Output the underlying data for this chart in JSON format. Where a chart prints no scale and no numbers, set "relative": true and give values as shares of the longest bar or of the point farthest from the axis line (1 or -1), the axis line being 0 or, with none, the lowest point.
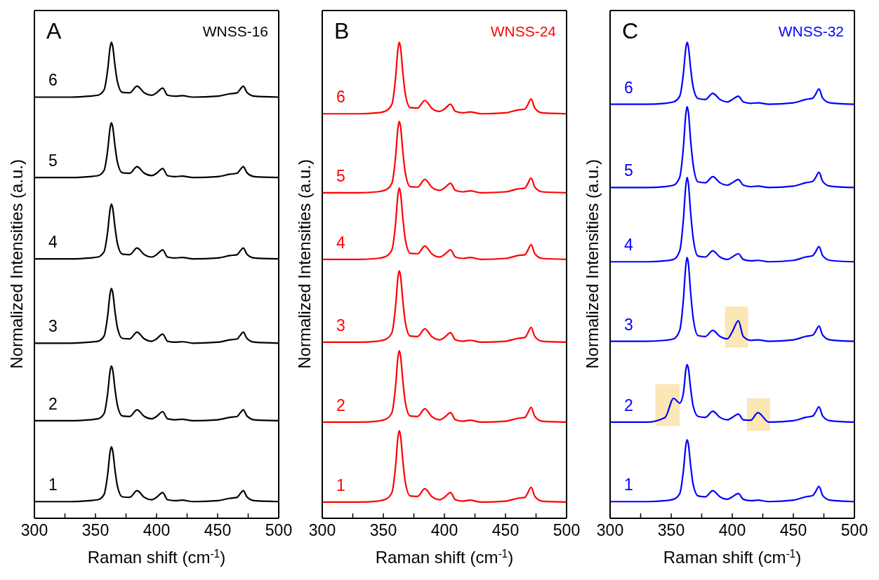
{
  "chart_data": [
    {
      "type": "line",
      "title": "A",
      "annotations": [
        "WNSS-16"
      ],
      "xlabel": "Raman shift (cm$^{-1}$)",
      "ylabel": "Normalized Intensities (a.u.)",
      "relative": true,
      "tick_labels": "x",
      "marker": "none",
      "xlim": [
        300,
        500
      ],
      "xticks": [
        300,
        {
          "value": 325,
          "label": null
        },
        350,
        {
          "value": 375,
          "label": null
        },
        400,
        {
          "value": 425,
          "label": null
        },
        450,
        {
          "value": 475,
          "label": null
        },
        500
      ],
      "x": [
        300,
        330,
        345,
        352,
        357,
        360,
        362,
        363,
        364,
        366,
        368,
        372,
        378,
        384,
        390,
        396,
        400,
        405,
        409,
        415,
        421,
        430,
        450,
        460,
        466,
        468,
        471,
        474,
        480,
        500
      ],
      "series": [
        {
          "name": "1",
          "color": "#000000",
          "values": [
            0.035,
            0.035,
            0.037,
            0.039,
            0.05,
            0.093,
            0.14,
            0.15,
            0.143,
            0.101,
            0.067,
            0.045,
            0.044,
            0.058,
            0.044,
            0.039,
            0.044,
            0.054,
            0.039,
            0.037,
            0.038,
            0.035,
            0.037,
            0.042,
            0.044,
            0.05,
            0.058,
            0.045,
            0.037,
            0.035
          ]
        },
        {
          "name": "2",
          "color": "#000000",
          "values": [
            0.205,
            0.205,
            0.207,
            0.209,
            0.22,
            0.263,
            0.31,
            0.32,
            0.313,
            0.271,
            0.237,
            0.215,
            0.214,
            0.228,
            0.214,
            0.209,
            0.214,
            0.224,
            0.209,
            0.207,
            0.208,
            0.205,
            0.207,
            0.212,
            0.214,
            0.22,
            0.228,
            0.215,
            0.207,
            0.205
          ]
        },
        {
          "name": "3",
          "color": "#000000",
          "values": [
            0.368,
            0.368,
            0.37,
            0.372,
            0.383,
            0.426,
            0.473,
            0.483,
            0.476,
            0.434,
            0.4,
            0.378,
            0.377,
            0.391,
            0.377,
            0.372,
            0.377,
            0.387,
            0.372,
            0.37,
            0.371,
            0.368,
            0.37,
            0.375,
            0.377,
            0.383,
            0.391,
            0.378,
            0.37,
            0.368
          ]
        },
        {
          "name": "4",
          "color": "#000000",
          "values": [
            0.545,
            0.545,
            0.547,
            0.549,
            0.56,
            0.603,
            0.65,
            0.66,
            0.653,
            0.611,
            0.577,
            0.555,
            0.554,
            0.568,
            0.554,
            0.549,
            0.554,
            0.564,
            0.549,
            0.547,
            0.548,
            0.545,
            0.547,
            0.552,
            0.554,
            0.56,
            0.568,
            0.555,
            0.547,
            0.545
          ]
        },
        {
          "name": "5",
          "color": "#000000",
          "values": [
            0.716,
            0.716,
            0.718,
            0.72,
            0.731,
            0.774,
            0.821,
            0.831,
            0.824,
            0.782,
            0.748,
            0.726,
            0.725,
            0.739,
            0.725,
            0.72,
            0.725,
            0.735,
            0.72,
            0.718,
            0.719,
            0.716,
            0.718,
            0.723,
            0.725,
            0.731,
            0.739,
            0.726,
            0.718,
            0.716
          ]
        },
        {
          "name": "6",
          "color": "#000000",
          "values": [
            0.885,
            0.885,
            0.887,
            0.889,
            0.9,
            0.943,
            0.99,
            1,
            0.993,
            0.951,
            0.917,
            0.895,
            0.894,
            0.908,
            0.894,
            0.889,
            0.894,
            0.904,
            0.889,
            0.887,
            0.888,
            0.885,
            0.887,
            0.892,
            0.894,
            0.9,
            0.908,
            0.895,
            0.887,
            0.885
          ]
        }
      ]
    },
    {
      "type": "line",
      "title": "B",
      "annotations": [
        "WNSS-24"
      ],
      "xlabel": "Raman shift (cm$^{-1}$)",
      "ylabel": "Normalized Intensities (a.u.)",
      "relative": true,
      "tick_labels": "x",
      "marker": "none",
      "xlim": [
        300,
        500
      ],
      "xticks": [
        300,
        {
          "value": 325,
          "label": null
        },
        350,
        {
          "value": 375,
          "label": null
        },
        400,
        {
          "value": 425,
          "label": null
        },
        450,
        {
          "value": 475,
          "label": null
        },
        500
      ],
      "x": [
        300,
        330,
        345,
        352,
        357,
        360,
        362,
        363,
        364,
        366,
        368,
        372,
        378,
        384,
        390,
        396,
        400,
        405,
        409,
        415,
        421,
        430,
        450,
        460,
        466,
        468,
        471,
        474,
        480,
        500
      ],
      "series": [
        {
          "name": "1",
          "color": "#ff0000",
          "values": [
            0.034,
            0.034,
            0.036,
            0.04,
            0.054,
            0.109,
            0.171,
            0.184,
            0.175,
            0.12,
            0.076,
            0.047,
            0.046,
            0.062,
            0.045,
            0.039,
            0.044,
            0.054,
            0.039,
            0.036,
            0.038,
            0.034,
            0.036,
            0.042,
            0.044,
            0.052,
            0.065,
            0.046,
            0.036,
            0.034
          ]
        },
        {
          "name": "2",
          "color": "#ff0000",
          "values": [
            0.202,
            0.202,
            0.204,
            0.208,
            0.222,
            0.277,
            0.339,
            0.352,
            0.343,
            0.288,
            0.244,
            0.215,
            0.214,
            0.23,
            0.213,
            0.207,
            0.212,
            0.222,
            0.207,
            0.204,
            0.206,
            0.202,
            0.204,
            0.21,
            0.212,
            0.22,
            0.233,
            0.214,
            0.204,
            0.202
          ]
        },
        {
          "name": "3",
          "color": "#ff0000",
          "values": [
            0.37,
            0.37,
            0.372,
            0.376,
            0.39,
            0.445,
            0.507,
            0.52,
            0.511,
            0.456,
            0.412,
            0.383,
            0.382,
            0.398,
            0.381,
            0.375,
            0.38,
            0.39,
            0.375,
            0.372,
            0.374,
            0.37,
            0.372,
            0.378,
            0.38,
            0.388,
            0.401,
            0.382,
            0.372,
            0.37
          ]
        },
        {
          "name": "4",
          "color": "#ff0000",
          "values": [
            0.544,
            0.544,
            0.546,
            0.55,
            0.564,
            0.619,
            0.681,
            0.694,
            0.685,
            0.63,
            0.586,
            0.557,
            0.556,
            0.572,
            0.555,
            0.549,
            0.554,
            0.564,
            0.549,
            0.546,
            0.548,
            0.544,
            0.546,
            0.552,
            0.554,
            0.562,
            0.575,
            0.556,
            0.546,
            0.544
          ]
        },
        {
          "name": "5",
          "color": "#ff0000",
          "values": [
            0.684,
            0.684,
            0.686,
            0.69,
            0.704,
            0.759,
            0.821,
            0.834,
            0.825,
            0.77,
            0.726,
            0.697,
            0.696,
            0.712,
            0.695,
            0.689,
            0.694,
            0.704,
            0.689,
            0.686,
            0.688,
            0.684,
            0.686,
            0.692,
            0.694,
            0.702,
            0.715,
            0.696,
            0.686,
            0.684
          ]
        },
        {
          "name": "6",
          "color": "#ff0000",
          "values": [
            0.85,
            0.85,
            0.852,
            0.856,
            0.87,
            0.925,
            0.987,
            1,
            0.991,
            0.936,
            0.892,
            0.863,
            0.862,
            0.878,
            0.861,
            0.855,
            0.86,
            0.87,
            0.855,
            0.852,
            0.854,
            0.85,
            0.852,
            0.858,
            0.86,
            0.868,
            0.881,
            0.862,
            0.852,
            0.85
          ]
        }
      ]
    },
    {
      "type": "line",
      "title": "C",
      "annotations": [
        "WNSS-32"
      ],
      "xlabel": "Raman shift (cm$^{-1}$)",
      "ylabel": "Normalized Intensities (a.u.)",
      "relative": true,
      "tick_labels": "x",
      "marker": "none",
      "xlim": [
        300,
        500
      ],
      "xticks": [
        300,
        {
          "value": 325,
          "label": null
        },
        350,
        {
          "value": 375,
          "label": null
        },
        400,
        {
          "value": 425,
          "label": null
        },
        450,
        {
          "value": 475,
          "label": null
        },
        500
      ],
      "x": [
        300,
        330,
        345,
        352,
        357,
        360,
        362,
        363,
        364,
        366,
        368,
        372,
        378,
        384,
        390,
        396,
        400,
        405,
        409,
        415,
        421,
        430,
        450,
        460,
        466,
        468,
        471,
        474,
        480,
        500
      ],
      "series": [
        {
          "name": "1",
          "color": "#0000ff",
          "values": [
            0.035,
            0.035,
            0.037,
            0.04,
            0.052,
            0.1,
            0.153,
            0.165,
            0.157,
            0.109,
            0.071,
            0.047,
            0.045,
            0.058,
            0.045,
            0.04,
            0.045,
            0.052,
            0.04,
            0.037,
            0.038,
            0.035,
            0.038,
            0.045,
            0.048,
            0.055,
            0.067,
            0.048,
            0.038,
            0.035
          ]
        },
        {
          "name": "2",
          "color": "#0000ff",
          "values": [
            0.202,
            0.202,
            0.212,
            0.252,
            0.242,
            0.263,
            0.312,
            0.323,
            0.316,
            0.271,
            0.236,
            0.214,
            0.212,
            0.225,
            0.212,
            0.207,
            0.212,
            0.219,
            0.207,
            0.206,
            0.222,
            0.202,
            0.205,
            0.212,
            0.215,
            0.222,
            0.234,
            0.215,
            0.205,
            0.202
          ]
        },
        {
          "name": "3",
          "color": "#0000ff",
          "values": [
            0.372,
            0.372,
            0.374,
            0.377,
            0.395,
            0.46,
            0.532,
            0.548,
            0.537,
            0.472,
            0.421,
            0.384,
            0.382,
            0.395,
            0.382,
            0.377,
            0.392,
            0.415,
            0.382,
            0.374,
            0.375,
            0.372,
            0.375,
            0.382,
            0.385,
            0.392,
            0.404,
            0.385,
            0.375,
            0.372
          ]
        },
        {
          "name": "4",
          "color": "#0000ff",
          "values": [
            0.539,
            0.539,
            0.541,
            0.544,
            0.562,
            0.628,
            0.7,
            0.716,
            0.705,
            0.64,
            0.589,
            0.551,
            0.549,
            0.562,
            0.549,
            0.544,
            0.549,
            0.556,
            0.544,
            0.541,
            0.542,
            0.539,
            0.542,
            0.549,
            0.552,
            0.559,
            0.571,
            0.552,
            0.542,
            0.539
          ]
        },
        {
          "name": "5",
          "color": "#0000ff",
          "values": [
            0.695,
            0.695,
            0.697,
            0.7,
            0.717,
            0.78,
            0.85,
            0.865,
            0.855,
            0.792,
            0.743,
            0.707,
            0.705,
            0.718,
            0.705,
            0.7,
            0.705,
            0.712,
            0.7,
            0.697,
            0.698,
            0.695,
            0.698,
            0.705,
            0.708,
            0.715,
            0.727,
            0.708,
            0.698,
            0.695
          ]
        },
        {
          "name": "6",
          "color": "#0000ff",
          "values": [
            0.87,
            0.87,
            0.872,
            0.875,
            0.887,
            0.935,
            0.988,
            1,
            0.992,
            0.944,
            0.906,
            0.882,
            0.88,
            0.893,
            0.88,
            0.875,
            0.88,
            0.887,
            0.875,
            0.872,
            0.873,
            0.87,
            0.873,
            0.88,
            0.883,
            0.89,
            0.902,
            0.883,
            0.873,
            0.87
          ]
        }
      ],
      "bands": [
        {
          "axis": "x",
          "from": 337,
          "to": 357,
          "color": "#f9dc97"
        },
        {
          "axis": "x",
          "from": 394,
          "to": 413,
          "color": "#f9dc97"
        },
        {
          "axis": "x",
          "from": 412,
          "to": 431,
          "color": "#f9dc97"
        }
      ]
    }
  ]
}
